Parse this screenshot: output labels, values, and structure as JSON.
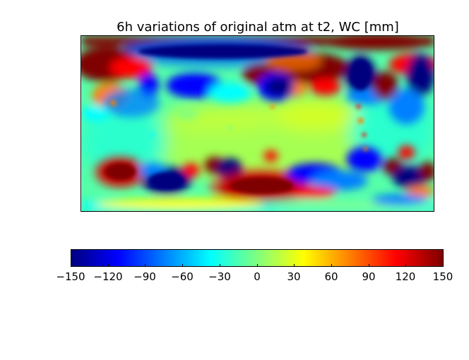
{
  "chart_data": {
    "type": "heatmap",
    "title": "6h variations of original atm at t2, WC [mm]",
    "colorbar": {
      "ticks": [
        "−150",
        "−120",
        "−90",
        "−60",
        "−30",
        "0",
        "30",
        "60",
        "90",
        "120",
        "150"
      ],
      "min": -150,
      "max": 150,
      "colormap": "jet",
      "orientation": "horizontal"
    },
    "grid": false,
    "axes_ticks_visible": false,
    "colors": {
      "jet_0": "#00007f",
      "jet_1": "#0000ff",
      "jet_2": "#007fff",
      "jet_3": "#00ffff",
      "jet_4": "#7fff7f",
      "jet_5": "#ffff00",
      "jet_6": "#ff7f00",
      "jet_7": "#ff0000",
      "jet_8": "#7f0000"
    }
  }
}
